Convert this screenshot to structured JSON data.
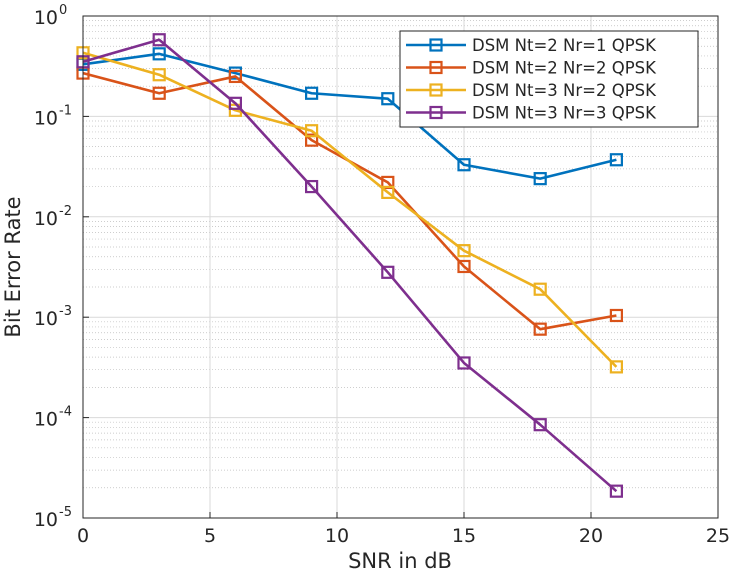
{
  "chart_data": {
    "type": "line",
    "title": "",
    "xlabel": "SNR in dB",
    "ylabel": "Bit Error Rate",
    "xlim": [
      0,
      25
    ],
    "ylim_exponents": [
      -5,
      0
    ],
    "y_scale": "log",
    "grid": true,
    "minor_grid": true,
    "legend_position": "top-right",
    "x_ticks": [
      0,
      5,
      10,
      15,
      20,
      25
    ],
    "x_tick_labels": [
      "0",
      "5",
      "10",
      "15",
      "20",
      "25"
    ],
    "y_ticks": [
      {
        "base": "10",
        "exp": "-5",
        "value": 1e-05
      },
      {
        "base": "10",
        "exp": "-4",
        "value": 0.0001
      },
      {
        "base": "10",
        "exp": "-3",
        "value": 0.001
      },
      {
        "base": "10",
        "exp": "-2",
        "value": 0.01
      },
      {
        "base": "10",
        "exp": "-1",
        "value": 0.1
      },
      {
        "base": "10",
        "exp": "0",
        "value": 1
      }
    ],
    "x": [
      0,
      3,
      6,
      9,
      12,
      15,
      18,
      21
    ],
    "series": [
      {
        "name": "DSM Nt=2 Nr=1 QPSK",
        "color": "#0072BD",
        "values": [
          0.33,
          0.42,
          0.27,
          0.17,
          0.15,
          0.033,
          0.024,
          0.037
        ]
      },
      {
        "name": "DSM Nt=2 Nr=2 QPSK",
        "color": "#D95319",
        "values": [
          0.27,
          0.17,
          0.25,
          0.058,
          0.022,
          0.0032,
          0.00076,
          0.00104
        ]
      },
      {
        "name": "DSM Nt=3 Nr=2 QPSK",
        "color": "#EDB120",
        "values": [
          0.43,
          0.26,
          0.115,
          0.072,
          0.0175,
          0.0046,
          0.0019,
          0.00032
        ]
      },
      {
        "name": "DSM Nt=3 Nr=3 QPSK",
        "color": "#7E2F8E",
        "values": [
          0.35,
          0.58,
          0.135,
          0.02,
          0.0028,
          0.00035,
          8.5e-05,
          1.85e-05
        ]
      }
    ]
  }
}
